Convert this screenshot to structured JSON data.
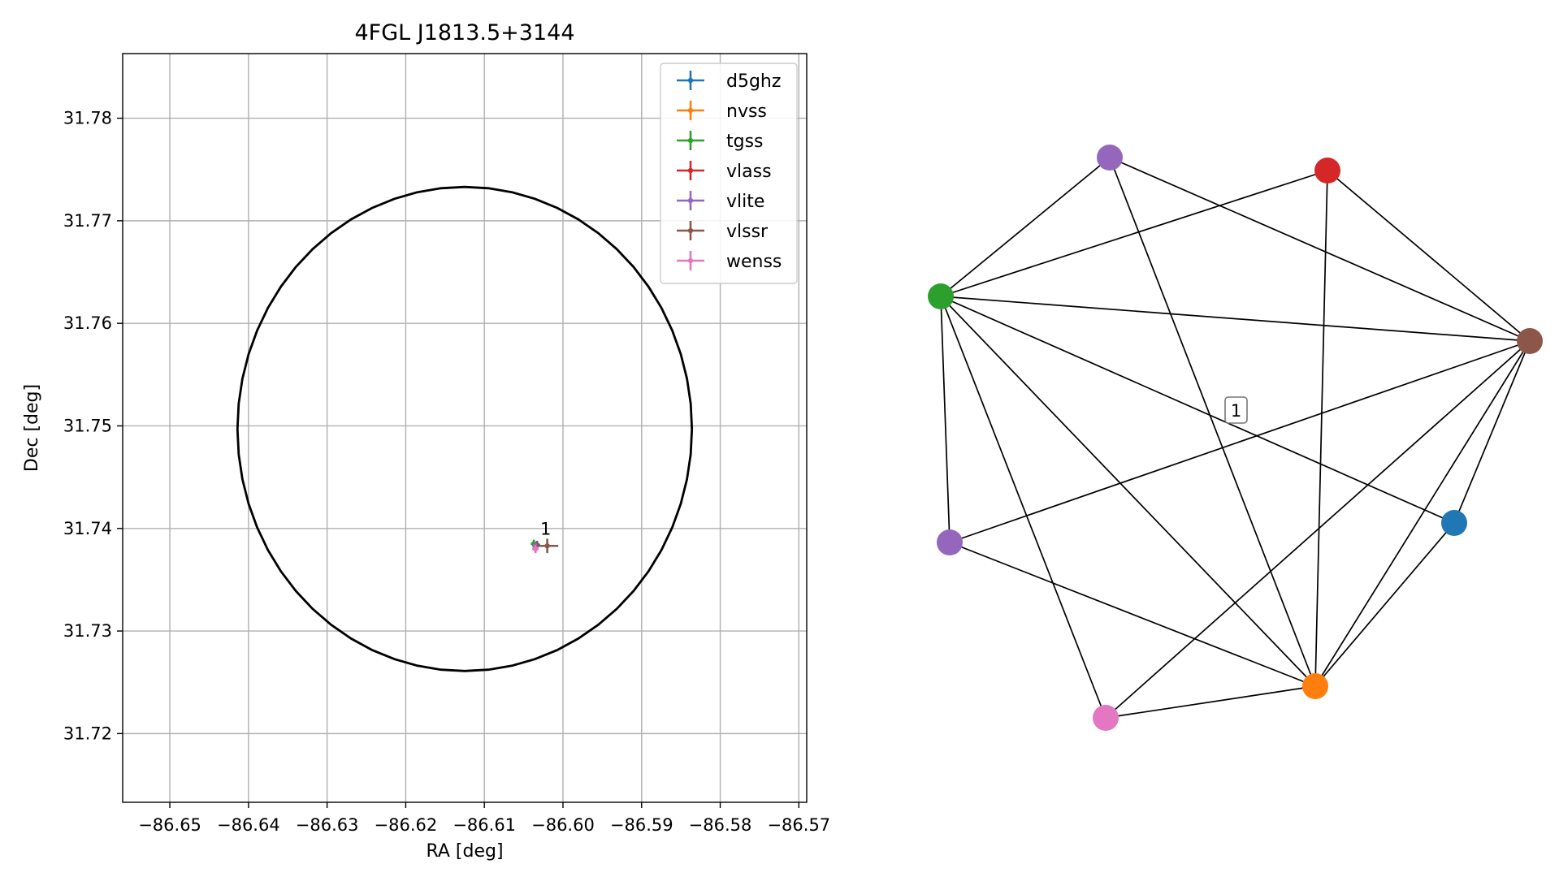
{
  "chart_data": [
    {
      "type": "scatter",
      "title": "4FGL J1813.5+3144",
      "xlabel": "RA [deg]",
      "ylabel": "Dec [deg]",
      "xlim": [
        -86.656,
        -86.569
      ],
      "ylim": [
        31.7133,
        31.7863
      ],
      "xticks": [
        -86.65,
        -86.64,
        -86.63,
        -86.62,
        -86.61,
        -86.6,
        -86.59,
        -86.58,
        -86.57
      ],
      "xtick_labels": [
        "−86.65",
        "−86.64",
        "−86.63",
        "−86.62",
        "−86.61",
        "−86.60",
        "−86.59",
        "−86.58",
        "−86.57"
      ],
      "yticks": [
        31.72,
        31.73,
        31.74,
        31.75,
        31.76,
        31.77,
        31.78
      ],
      "ytick_labels": [
        "31.72",
        "31.73",
        "31.74",
        "31.75",
        "31.76",
        "31.77",
        "31.78"
      ],
      "grid": true,
      "legend_position": "top-right",
      "ellipse": {
        "center_x": -86.6125,
        "center_y": 31.7497,
        "radius_x": 0.0289,
        "radius_y": 0.0236
      },
      "series": [
        {
          "name": "d5ghz",
          "color": "#1f77b4",
          "x": -86.6033,
          "y": 31.7384,
          "xerr": 0.0004,
          "yerr": 0.0004
        },
        {
          "name": "nvss",
          "color": "#ff7f0e",
          "x": -86.6035,
          "y": 31.7383,
          "xerr": 0.0004,
          "yerr": 0.0004
        },
        {
          "name": "tgss",
          "color": "#2ca02c",
          "x": -86.6037,
          "y": 31.7385,
          "xerr": 0.0004,
          "yerr": 0.0004
        },
        {
          "name": "vlass",
          "color": "#d62728",
          "x": -86.6034,
          "y": 31.7384,
          "xerr": 0.0003,
          "yerr": 0.0003
        },
        {
          "name": "vlite",
          "color": "#9467bd",
          "x": -86.6035,
          "y": 31.7383,
          "xerr": 0.0004,
          "yerr": 0.0004
        },
        {
          "name": "vlssr",
          "color": "#8c564b",
          "x": -86.602,
          "y": 31.7383,
          "xerr": 0.0014,
          "yerr": 0.0007
        },
        {
          "name": "wenss",
          "color": "#e377c2",
          "x": -86.6035,
          "y": 31.738,
          "xerr": 0.0004,
          "yerr": 0.0004
        }
      ],
      "annotations": [
        {
          "text": "1",
          "x": -86.6022,
          "y": 31.7394
        }
      ]
    },
    {
      "type": "network",
      "nodes": [
        {
          "id": "d5ghz",
          "color": "#1f77b4"
        },
        {
          "id": "nvss",
          "color": "#ff7f0e"
        },
        {
          "id": "tgss",
          "color": "#2ca02c"
        },
        {
          "id": "vlass",
          "color": "#d62728"
        },
        {
          "id": "vlite_a",
          "color": "#9467bd"
        },
        {
          "id": "vlite_b",
          "color": "#9467bd"
        },
        {
          "id": "vlssr",
          "color": "#8c564b"
        },
        {
          "id": "wenss",
          "color": "#e377c2"
        }
      ],
      "edges": [
        [
          "vlite_a",
          "tgss"
        ],
        [
          "vlite_a",
          "vlssr"
        ],
        [
          "vlite_a",
          "nvss"
        ],
        [
          "vlass",
          "tgss"
        ],
        [
          "vlass",
          "vlssr"
        ],
        [
          "vlass",
          "nvss"
        ],
        [
          "tgss",
          "vlssr"
        ],
        [
          "tgss",
          "d5ghz"
        ],
        [
          "tgss",
          "vlite_b"
        ],
        [
          "tgss",
          "nvss"
        ],
        [
          "tgss",
          "wenss"
        ],
        [
          "vlssr",
          "vlite_b"
        ],
        [
          "vlssr",
          "d5ghz"
        ],
        [
          "vlssr",
          "nvss"
        ],
        [
          "vlssr",
          "wenss"
        ],
        [
          "vlite_b",
          "nvss"
        ],
        [
          "d5ghz",
          "nvss"
        ],
        [
          "wenss",
          "nvss"
        ]
      ],
      "cluster_label": "1"
    }
  ]
}
